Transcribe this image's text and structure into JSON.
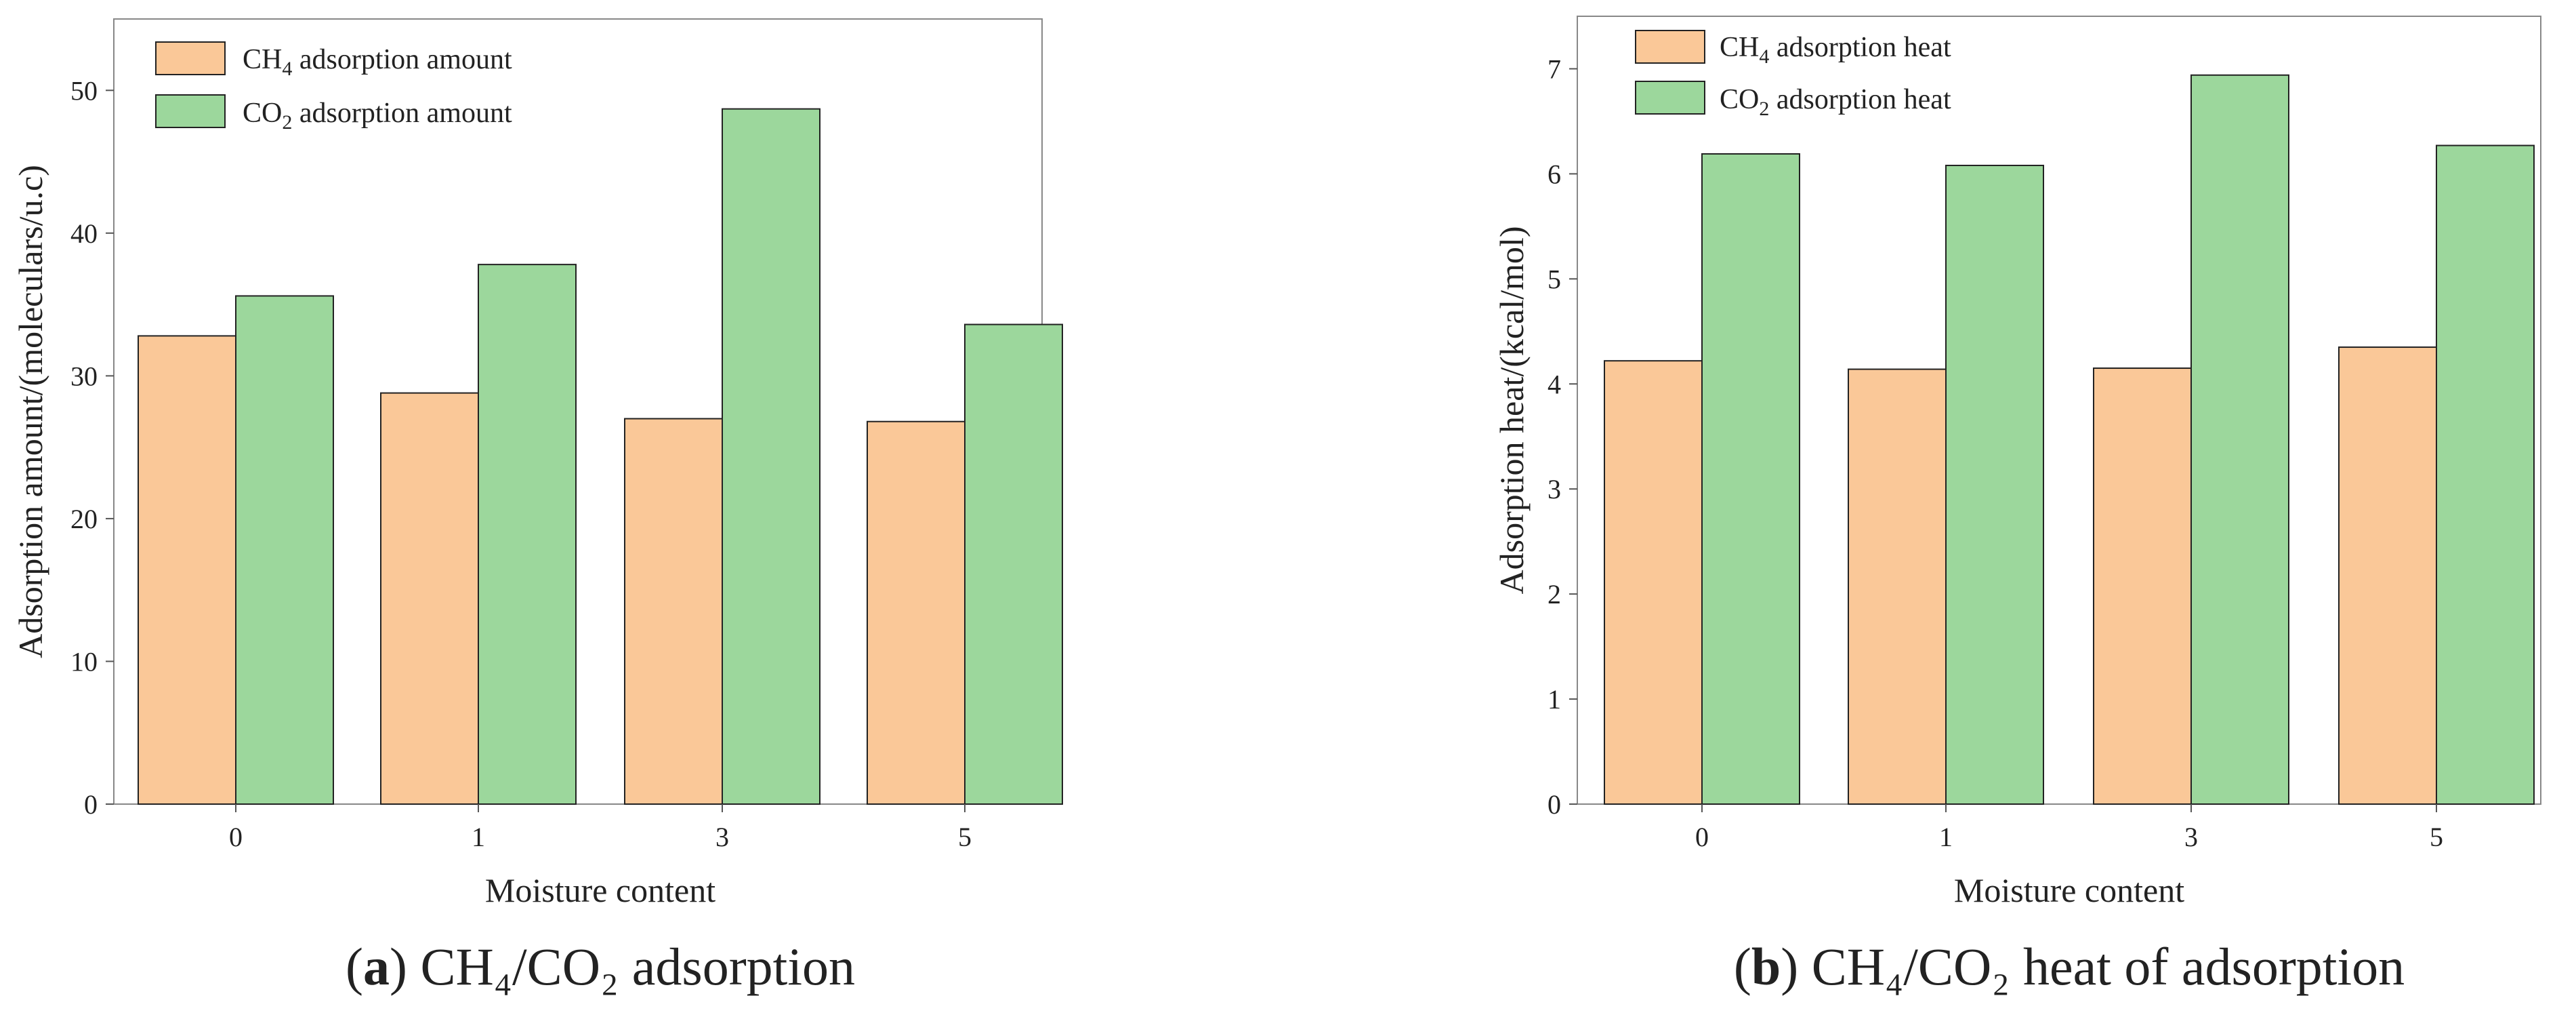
{
  "colors": {
    "ch4": "#fac898",
    "co2": "#9cd79c",
    "edge": "#222222",
    "frame": "#888888"
  },
  "charts": [
    {
      "caption": {
        "open": "(",
        "letter": "a",
        "close": ")",
        "text": "CH₄/CO₂ adsorption"
      },
      "legend": [
        {
          "main": "CH",
          "sub": "4",
          "rest": " adsorption amount"
        },
        {
          "main": "CO",
          "sub": "2",
          "rest": " adsorption amount"
        }
      ]
    },
    {
      "caption": {
        "open": "(",
        "letter": "b",
        "close": ")",
        "text": "CH₄/CO₂ heat of adsorption"
      },
      "legend": [
        {
          "main": "CH",
          "sub": "4",
          "rest": " adsorption heat"
        },
        {
          "main": "CO",
          "sub": "2",
          "rest": " adsorption heat"
        }
      ]
    }
  ],
  "chart_data": [
    {
      "type": "bar",
      "categories": [
        "0",
        "1",
        "3",
        "5"
      ],
      "series": [
        {
          "name": "CH4 adsorption amount",
          "values": [
            32.8,
            28.8,
            27.0,
            26.8
          ]
        },
        {
          "name": "CO2 adsorption amount",
          "values": [
            35.6,
            37.8,
            48.7,
            33.6
          ]
        }
      ],
      "title": "",
      "xlabel": "Moisture content",
      "ylabel": "Adsorption amount/(moleculars/u.c)",
      "ylim": [
        0,
        55
      ],
      "yticks": [
        0,
        10,
        20,
        30,
        40,
        50
      ],
      "legend": "top-left",
      "grid": false
    },
    {
      "type": "bar",
      "categories": [
        "0",
        "1",
        "3",
        "5"
      ],
      "series": [
        {
          "name": "CH4 adsorption heat",
          "values": [
            4.22,
            4.14,
            4.15,
            4.35
          ]
        },
        {
          "name": "CO2 adsorption heat",
          "values": [
            6.19,
            6.08,
            6.94,
            6.27
          ]
        }
      ],
      "title": "",
      "xlabel": "Moisture content",
      "ylabel": "Adsorption heat/(kcal/mol)",
      "ylim": [
        0,
        7.5
      ],
      "yticks": [
        0,
        1,
        2,
        3,
        4,
        5,
        6,
        7
      ],
      "legend": "top-left",
      "grid": false
    }
  ]
}
